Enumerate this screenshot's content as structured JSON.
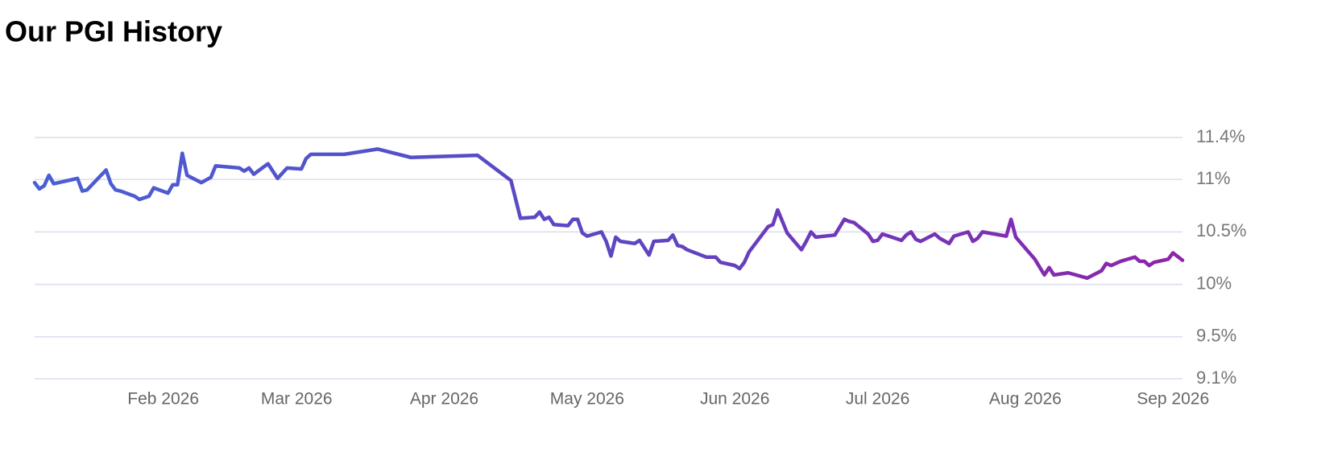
{
  "chart_data": {
    "type": "line",
    "title": "Our PGI History",
    "x": [
      5,
      6,
      7,
      8,
      9,
      14,
      15,
      16,
      20,
      21,
      22,
      23,
      26,
      27,
      29,
      30,
      33,
      34,
      35,
      36,
      37,
      40,
      42,
      43,
      48,
      49,
      50,
      51,
      54,
      56,
      58,
      61,
      62,
      63,
      70,
      77,
      84,
      98,
      105,
      107,
      110,
      111,
      112,
      113,
      114,
      117,
      118,
      119,
      120,
      121,
      124,
      125,
      126,
      127,
      128,
      131,
      132,
      134,
      135,
      138,
      139,
      140,
      141,
      142,
      146,
      148,
      149,
      152,
      153,
      154,
      155,
      159,
      160,
      161,
      163,
      166,
      167,
      168,
      169,
      173,
      175,
      176,
      177,
      180,
      181,
      182,
      183,
      187,
      188,
      189,
      190,
      191,
      194,
      195,
      197,
      198,
      201,
      202,
      203,
      204,
      209,
      210,
      211,
      215,
      217,
      218,
      219,
      222,
      226,
      229,
      230,
      231,
      233,
      236,
      237,
      238,
      239,
      240,
      243,
      244,
      246
    ],
    "series": [
      {
        "name": "PGI",
        "values": [
          10.97,
          10.91,
          10.94,
          11.04,
          10.96,
          11.01,
          10.89,
          10.9,
          11.09,
          10.96,
          10.9,
          10.89,
          10.84,
          10.81,
          10.84,
          10.92,
          10.87,
          10.95,
          10.95,
          11.25,
          11.04,
          10.97,
          11.02,
          11.13,
          11.11,
          11.08,
          11.11,
          11.05,
          11.15,
          11.01,
          11.11,
          11.1,
          11.2,
          11.24,
          11.24,
          11.29,
          11.21,
          11.23,
          10.99,
          10.63,
          10.64,
          10.69,
          10.62,
          10.64,
          10.57,
          10.56,
          10.62,
          10.62,
          10.49,
          10.46,
          10.5,
          10.41,
          10.27,
          10.45,
          10.41,
          10.39,
          10.42,
          10.28,
          10.41,
          10.42,
          10.47,
          10.37,
          10.36,
          10.33,
          10.26,
          10.26,
          10.21,
          10.18,
          10.15,
          10.21,
          10.31,
          10.55,
          10.57,
          10.71,
          10.49,
          10.33,
          10.41,
          10.5,
          10.45,
          10.47,
          10.62,
          10.6,
          10.59,
          10.48,
          10.41,
          10.42,
          10.48,
          10.42,
          10.47,
          10.5,
          10.43,
          10.41,
          10.48,
          10.44,
          10.39,
          10.46,
          10.5,
          10.41,
          10.44,
          10.5,
          10.46,
          10.62,
          10.45,
          10.24,
          10.09,
          10.16,
          10.09,
          10.11,
          10.06,
          10.13,
          10.2,
          10.18,
          10.22,
          10.26,
          10.22,
          10.22,
          10.18,
          10.21,
          10.24,
          10.3,
          10.23
        ]
      }
    ],
    "gradient": [
      "#4a5fd4",
      "#5b47c2",
      "#8e24aa"
    ],
    "xlim": [
      5,
      246
    ],
    "xticks": [
      {
        "value": 32,
        "label": "Feb 2026"
      },
      {
        "value": 60,
        "label": "Mar 2026"
      },
      {
        "value": 91,
        "label": "Apr 2026"
      },
      {
        "value": 121,
        "label": "May 2026"
      },
      {
        "value": 152,
        "label": "Jun 2026"
      },
      {
        "value": 182,
        "label": "Jul 2026"
      },
      {
        "value": 213,
        "label": "Aug 2026"
      },
      {
        "value": 244,
        "label": "Sep 2026"
      }
    ],
    "ylim": [
      9.1,
      11.4
    ],
    "yticks": [
      {
        "value": 9.1,
        "label": "9.1%"
      },
      {
        "value": 9.5,
        "label": "9.5%"
      },
      {
        "value": 10,
        "label": "10%"
      },
      {
        "value": 10.5,
        "label": "10.5%"
      },
      {
        "value": 11,
        "label": "11%"
      },
      {
        "value": 11.4,
        "label": "11.4%"
      }
    ],
    "grid": true
  }
}
